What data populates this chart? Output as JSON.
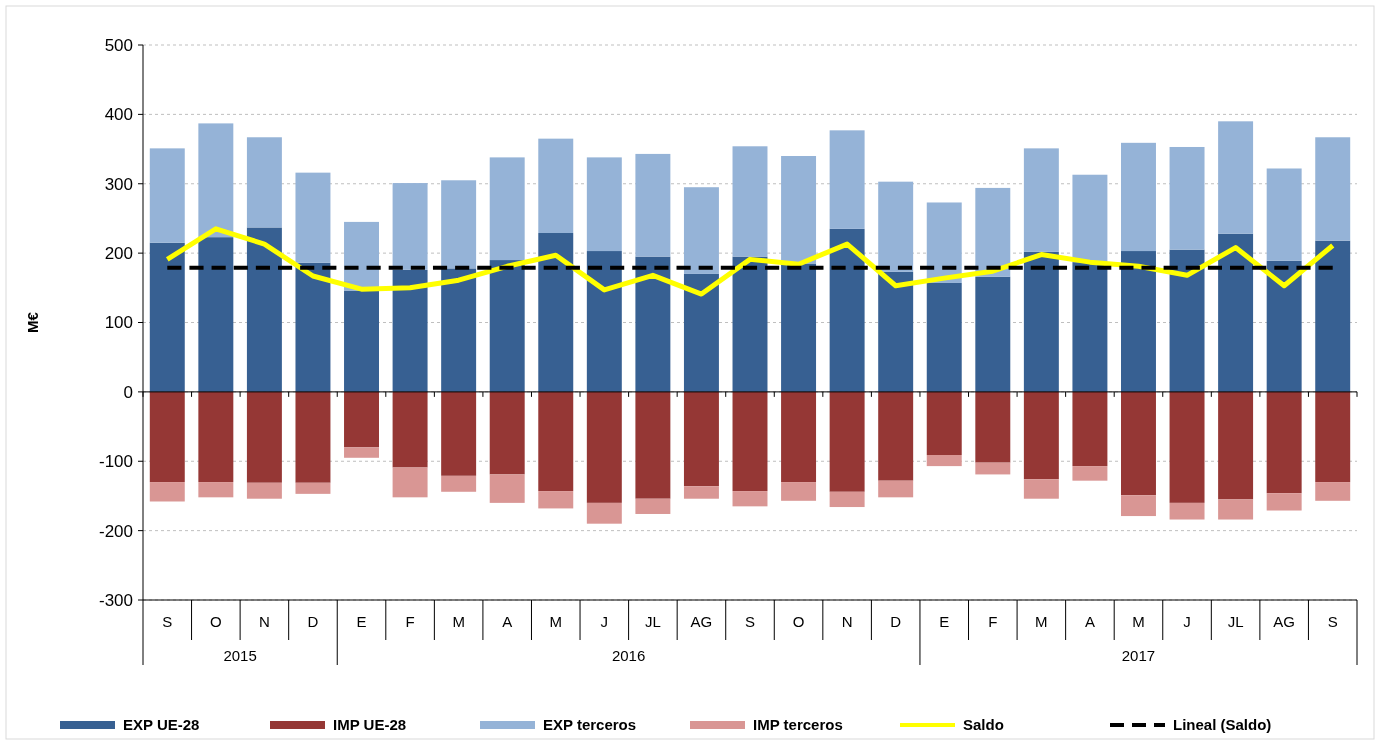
{
  "chart_data": {
    "type": "bar",
    "stacked": true,
    "ylabel": "M€",
    "categories": [
      "S",
      "O",
      "N",
      "D",
      "E",
      "F",
      "M",
      "A",
      "M",
      "J",
      "JL",
      "AG",
      "S",
      "O",
      "N",
      "D",
      "E",
      "F",
      "M",
      "A",
      "M",
      "J",
      "JL",
      "AG",
      "S"
    ],
    "series": [
      {
        "name": "EXP UE-28",
        "color": "#376092",
        "values": [
          215,
          223,
          237,
          186,
          146,
          176,
          178,
          190,
          229,
          203,
          195,
          170,
          195,
          185,
          235,
          173,
          157,
          166,
          202,
          187,
          203,
          205,
          228,
          189,
          218
        ]
      },
      {
        "name": "IMP UE-28",
        "color": "#953735",
        "values": [
          -130,
          -130,
          -131,
          -131,
          -80,
          -109,
          -121,
          -119,
          -143,
          -160,
          -154,
          -136,
          -143,
          -130,
          -144,
          -128,
          -91,
          -102,
          -126,
          -107,
          -149,
          -160,
          -155,
          -146,
          -130
        ]
      },
      {
        "name": "EXP terceros",
        "color": "#95b3d7",
        "values": [
          136,
          164,
          130,
          130,
          99,
          125,
          127,
          148,
          136,
          135,
          148,
          125,
          159,
          155,
          142,
          130,
          116,
          128,
          149,
          126,
          156,
          148,
          162,
          133,
          149
        ]
      },
      {
        "name": "IMP terceros",
        "color": "#d99694",
        "values": [
          -28,
          -22,
          -23,
          -16,
          -15,
          -43,
          -23,
          -41,
          -25,
          -30,
          -22,
          -18,
          -22,
          -27,
          -22,
          -24,
          -16,
          -17,
          -28,
          -21,
          -30,
          -24,
          -29,
          -25,
          -27
        ]
      },
      {
        "name": "Saldo",
        "type": "line",
        "color": "#ffff00",
        "line_style": "solid",
        "values": [
          191,
          235,
          213,
          167,
          148,
          150,
          161,
          181,
          197,
          147,
          168,
          141,
          191,
          184,
          213,
          153,
          164,
          174,
          198,
          187,
          181,
          168,
          208,
          153,
          211
        ]
      },
      {
        "name": "Lineal (Saldo)",
        "type": "line",
        "color": "#000000",
        "line_style": "dashed",
        "values": [
          179,
          179,
          179,
          179,
          179,
          179,
          179,
          179,
          179,
          179,
          179,
          179,
          179,
          179,
          179,
          179,
          179,
          179,
          179,
          179,
          179,
          179,
          179,
          179,
          179
        ]
      }
    ],
    "ylim": [
      -300,
      500
    ],
    "yticks": [
      -300,
      -200,
      -100,
      0,
      100,
      200,
      300,
      400,
      500
    ],
    "grid": "y",
    "legend": "bottom",
    "annotations": [
      "2015",
      "2016",
      "2017"
    ]
  }
}
